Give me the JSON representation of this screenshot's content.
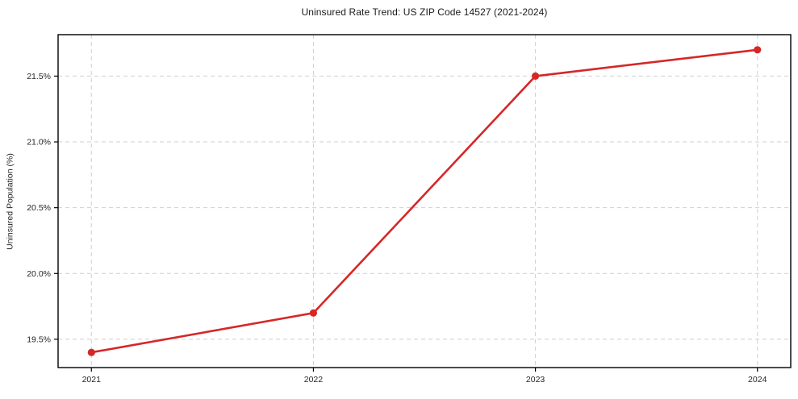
{
  "chart_data": {
    "type": "line",
    "title": "Uninsured Rate Trend: US ZIP Code 14527 (2021-2024)",
    "xlabel": "",
    "ylabel": "Uninsured Population (%)",
    "x": [
      2021,
      2022,
      2023,
      2024
    ],
    "x_tick_labels": [
      "2021",
      "2022",
      "2023",
      "2024"
    ],
    "series": [
      {
        "name": "Uninsured Population (%)",
        "values": [
          19.4,
          19.7,
          21.5,
          21.7
        ]
      }
    ],
    "y_ticks": [
      19.5,
      20.0,
      20.5,
      21.0,
      21.5
    ],
    "y_tick_labels": [
      "19.5%",
      "20.0%",
      "20.5%",
      "21.0%",
      "21.5%"
    ],
    "xlim": [
      2020.85,
      2024.15
    ],
    "ylim": [
      19.285,
      21.815
    ],
    "grid": true,
    "grid_style": "dashed",
    "legend": "none",
    "colors": {
      "line": "#d62728",
      "marker": "#d62728",
      "grid": "#cfcfcf",
      "spine": "#000000",
      "tick_label": "#262626",
      "background": "#ffffff"
    }
  }
}
